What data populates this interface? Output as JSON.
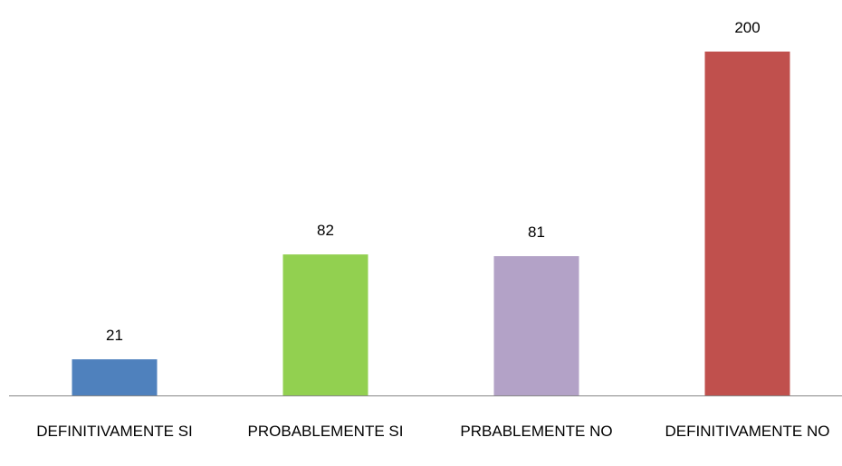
{
  "chart_data": {
    "type": "bar",
    "categories": [
      "DEFINITIVAMENTE SI",
      "PROBABLEMENTE SI",
      "PRBABLEMENTE NO",
      "DEFINITIVAMENTE NO"
    ],
    "values": [
      21,
      82,
      81,
      200
    ],
    "colors": [
      "#4f81bd",
      "#92d050",
      "#b3a2c7",
      "#c0504d"
    ]
  }
}
